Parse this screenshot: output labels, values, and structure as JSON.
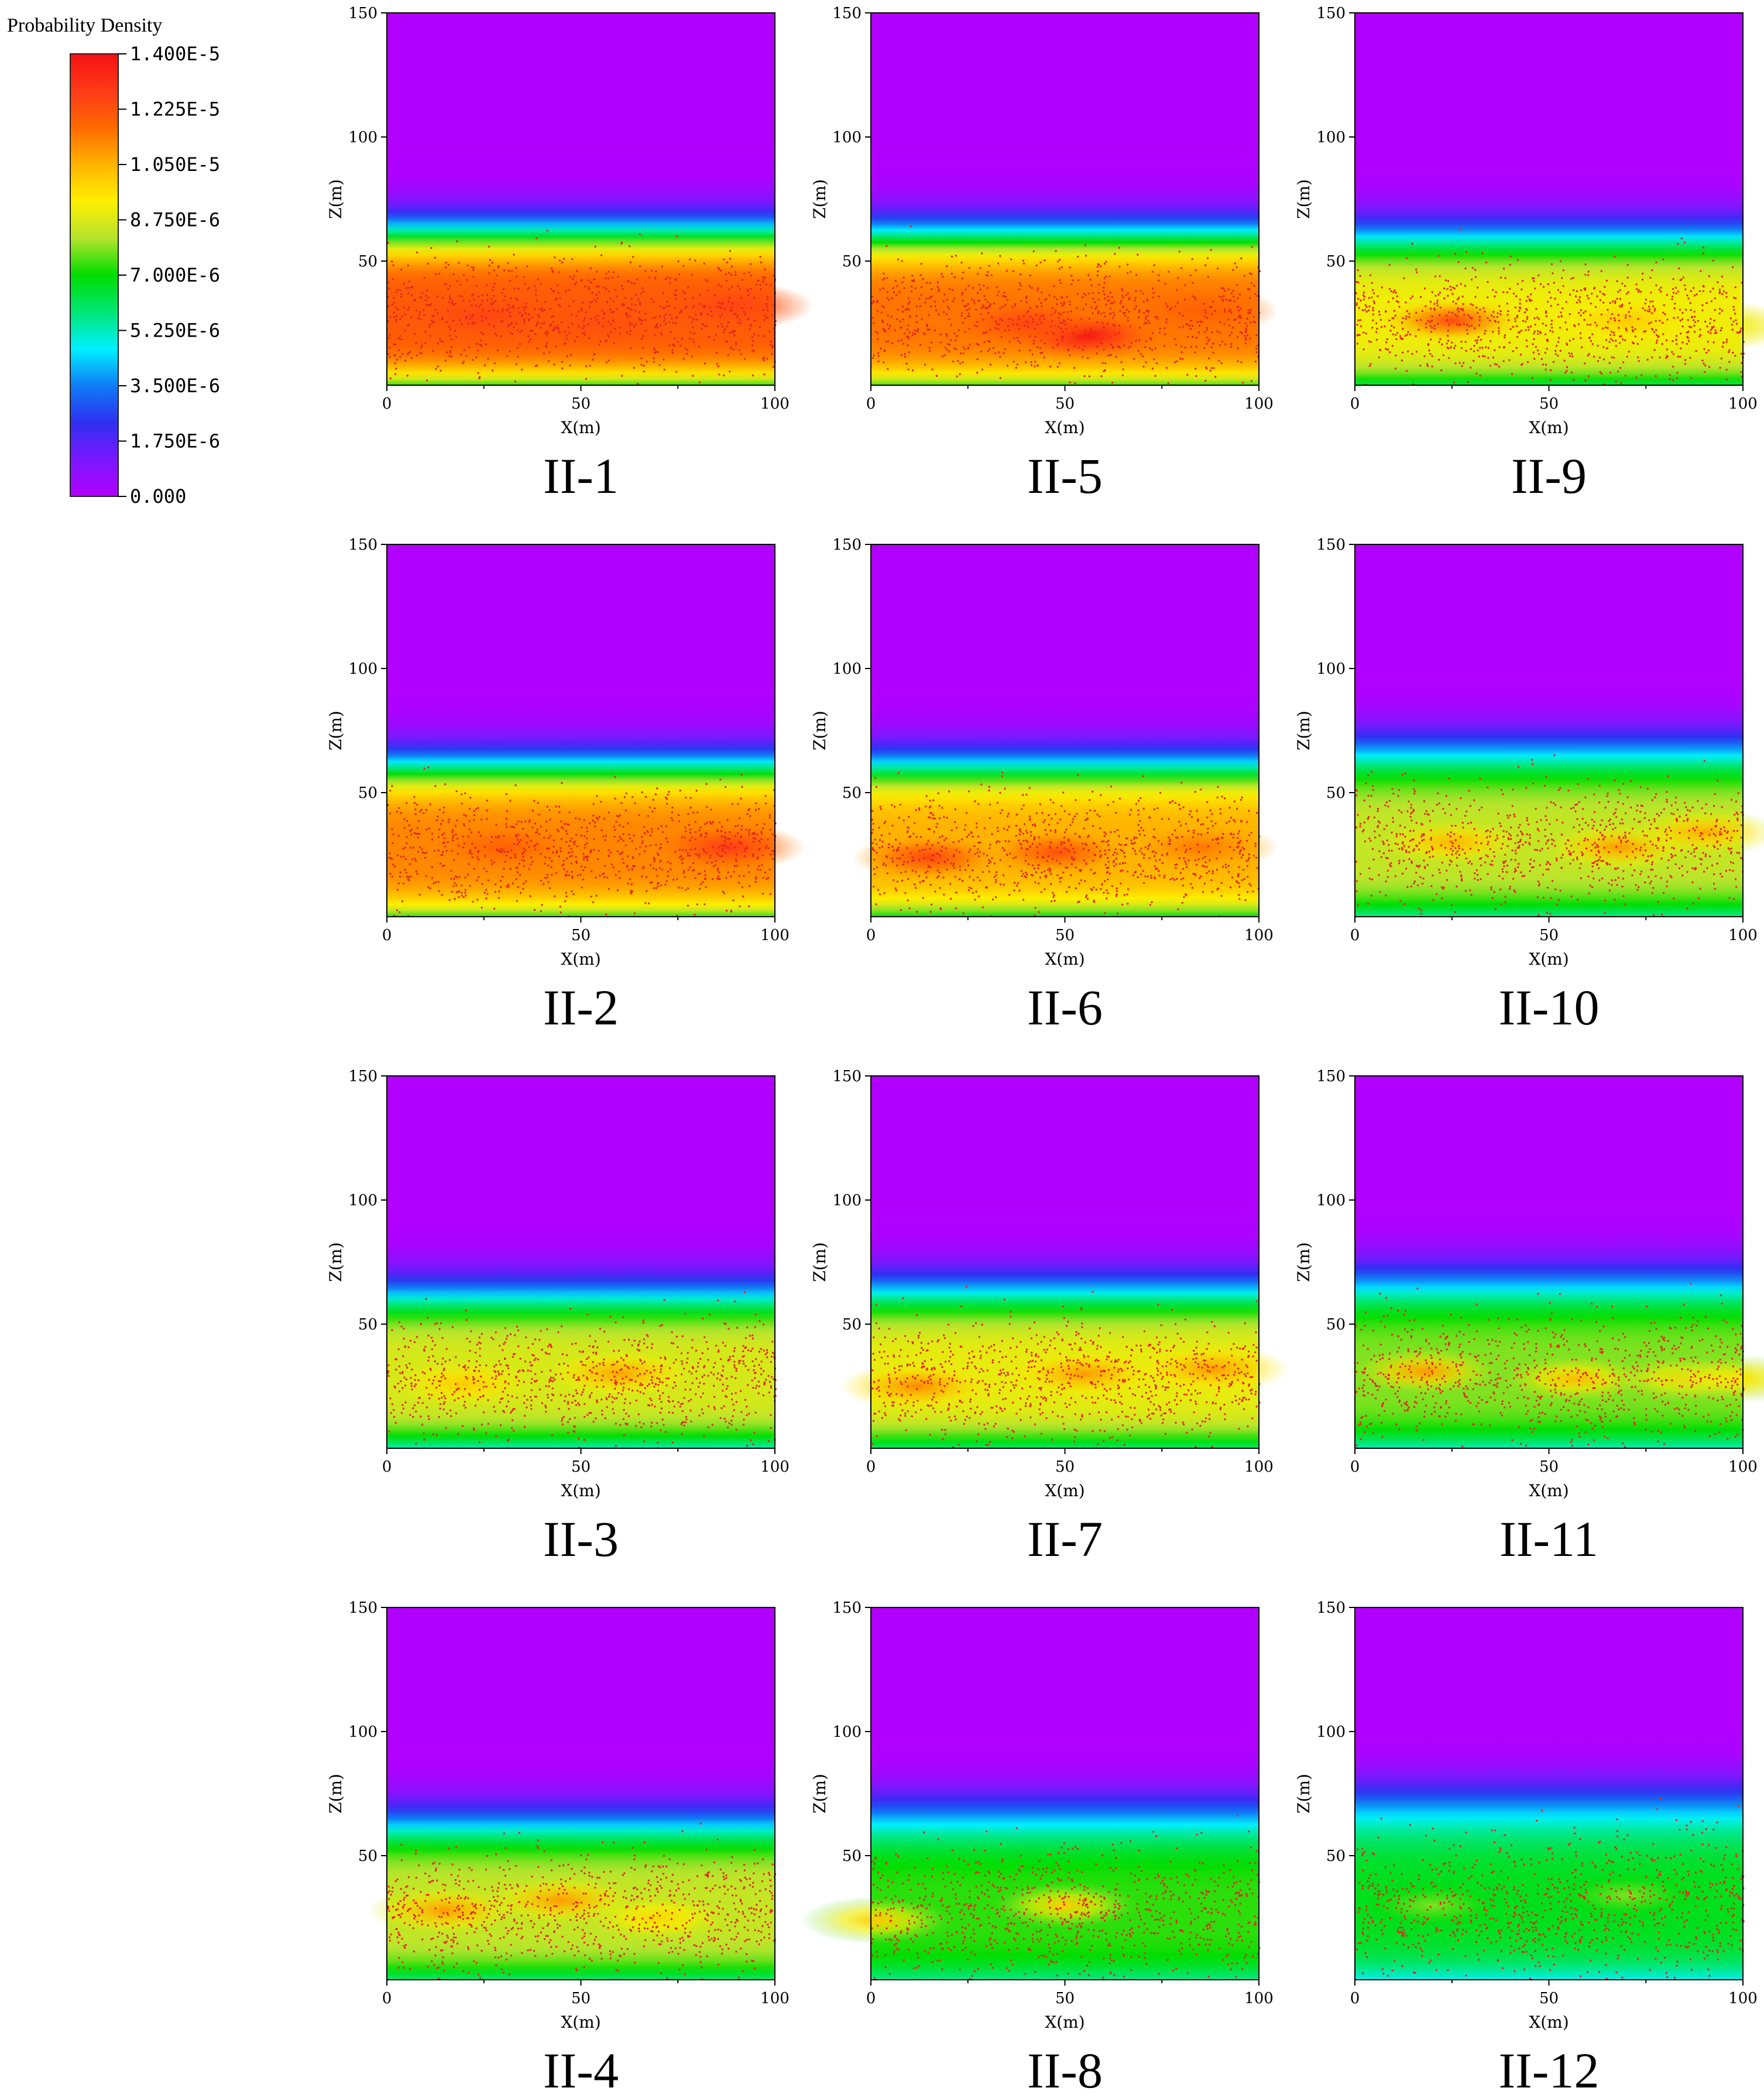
{
  "colorbar": {
    "title": "Probability Density",
    "min": 0,
    "max": 1.4e-05,
    "tick_labels": [
      "1.400E-5",
      "1.225E-5",
      "1.050E-5",
      "8.750E-6",
      "7.000E-6",
      "5.250E-6",
      "3.500E-6",
      "1.750E-6",
      "0.000"
    ],
    "stops": [
      "#b200ff",
      "#7a18ff",
      "#2f2ff0",
      "#0f7cf5",
      "#00f0ff",
      "#00e676",
      "#00dd00",
      "#b4e42e",
      "#ffef00",
      "#ffb400",
      "#ff6a00",
      "#ff3a18",
      "#f41212"
    ]
  },
  "particle_color": "#e8231c",
  "chart_data": [
    {
      "type": "heatmap",
      "title": "II-1",
      "xlabel": "X(m)",
      "ylabel": "Z(m)",
      "xlim": [
        0,
        100
      ],
      "ylim": [
        0,
        150
      ],
      "x_ticks": [
        "0",
        "50",
        "100"
      ],
      "y_ticks": [
        "50",
        "100",
        "150"
      ],
      "band": {
        "center_z": 28,
        "half_width_z": 22,
        "core_level": 0.86
      },
      "hotspots": [
        {
          "x": 25,
          "z": 28,
          "level": 0.9
        },
        {
          "x": 55,
          "z": 25,
          "level": 0.88
        },
        {
          "x": 90,
          "z": 32,
          "level": 0.9
        }
      ]
    },
    {
      "type": "heatmap",
      "title": "II-2",
      "xlabel": "X(m)",
      "ylabel": "Z(m)",
      "xlim": [
        0,
        100
      ],
      "ylim": [
        0,
        150
      ],
      "x_ticks": [
        "0",
        "50",
        "100"
      ],
      "y_ticks": [
        "50",
        "100",
        "150"
      ],
      "band": {
        "center_z": 27,
        "half_width_z": 22,
        "core_level": 0.8
      },
      "hotspots": [
        {
          "x": 30,
          "z": 28,
          "level": 0.85
        },
        {
          "x": 88,
          "z": 28,
          "level": 0.92
        }
      ]
    },
    {
      "type": "heatmap",
      "title": "II-3",
      "xlabel": "X(m)",
      "ylabel": "Z(m)",
      "xlim": [
        0,
        100
      ],
      "ylim": [
        0,
        150
      ],
      "x_ticks": [
        "0",
        "50",
        "100"
      ],
      "y_ticks": [
        "50",
        "100",
        "150"
      ],
      "band": {
        "center_z": 28,
        "half_width_z": 22,
        "core_level": 0.62
      },
      "hotspots": [
        {
          "x": 60,
          "z": 30,
          "level": 0.77
        },
        {
          "x": 20,
          "z": 26,
          "level": 0.72
        }
      ]
    },
    {
      "type": "heatmap",
      "title": "II-4",
      "xlabel": "X(m)",
      "ylabel": "Z(m)",
      "xlim": [
        0,
        100
      ],
      "ylim": [
        0,
        150
      ],
      "x_ticks": [
        "0",
        "50",
        "100"
      ],
      "y_ticks": [
        "50",
        "100",
        "150"
      ],
      "band": {
        "center_z": 27,
        "half_width_z": 23,
        "core_level": 0.6
      },
      "hotspots": [
        {
          "x": 15,
          "z": 28,
          "level": 0.78
        },
        {
          "x": 45,
          "z": 32,
          "level": 0.78
        },
        {
          "x": 70,
          "z": 25,
          "level": 0.7
        }
      ]
    },
    {
      "type": "heatmap",
      "title": "II-5",
      "xlabel": "X(m)",
      "ylabel": "Z(m)",
      "xlim": [
        0,
        100
      ],
      "ylim": [
        0,
        150
      ],
      "x_ticks": [
        "0",
        "50",
        "100"
      ],
      "y_ticks": [
        "50",
        "100",
        "150"
      ],
      "band": {
        "center_z": 27,
        "half_width_z": 22,
        "core_level": 0.82
      },
      "hotspots": [
        {
          "x": 55,
          "z": 20,
          "level": 1.0
        },
        {
          "x": 40,
          "z": 25,
          "level": 0.9
        },
        {
          "x": 85,
          "z": 30,
          "level": 0.85
        }
      ]
    },
    {
      "type": "heatmap",
      "title": "II-6",
      "xlabel": "X(m)",
      "ylabel": "Z(m)",
      "xlim": [
        0,
        100
      ],
      "ylim": [
        0,
        150
      ],
      "x_ticks": [
        "0",
        "50",
        "100"
      ],
      "y_ticks": [
        "50",
        "100",
        "150"
      ],
      "band": {
        "center_z": 27,
        "half_width_z": 22,
        "core_level": 0.75
      },
      "hotspots": [
        {
          "x": 15,
          "z": 24,
          "level": 0.9
        },
        {
          "x": 48,
          "z": 26,
          "level": 0.88
        },
        {
          "x": 85,
          "z": 28,
          "level": 0.82
        }
      ]
    },
    {
      "type": "heatmap",
      "title": "II-7",
      "xlabel": "X(m)",
      "ylabel": "Z(m)",
      "xlim": [
        0,
        100
      ],
      "ylim": [
        0,
        150
      ],
      "x_ticks": [
        "0",
        "50",
        "100"
      ],
      "y_ticks": [
        "50",
        "100",
        "150"
      ],
      "band": {
        "center_z": 28,
        "half_width_z": 23,
        "core_level": 0.64
      },
      "hotspots": [
        {
          "x": 12,
          "z": 25,
          "level": 0.8
        },
        {
          "x": 55,
          "z": 30,
          "level": 0.78
        },
        {
          "x": 88,
          "z": 32,
          "level": 0.78
        }
      ]
    },
    {
      "type": "heatmap",
      "title": "II-8",
      "xlabel": "X(m)",
      "ylabel": "Z(m)",
      "xlim": [
        0,
        100
      ],
      "ylim": [
        0,
        150
      ],
      "x_ticks": [
        "0",
        "50",
        "100"
      ],
      "y_ticks": [
        "50",
        "100",
        "150"
      ],
      "band": {
        "center_z": 27,
        "half_width_z": 25,
        "core_level": 0.52
      },
      "hotspots": [
        {
          "x": 2,
          "z": 24,
          "level": 0.72
        },
        {
          "x": 50,
          "z": 30,
          "level": 0.72
        }
      ]
    },
    {
      "type": "heatmap",
      "title": "II-9",
      "xlabel": "X(m)",
      "ylabel": "Z(m)",
      "xlim": [
        0,
        100
      ],
      "ylim": [
        0,
        150
      ],
      "x_ticks": [
        "0",
        "50",
        "100"
      ],
      "y_ticks": [
        "50",
        "100",
        "150"
      ],
      "band": {
        "center_z": 26,
        "half_width_z": 22,
        "core_level": 0.65
      },
      "hotspots": [
        {
          "x": 25,
          "z": 26,
          "level": 0.9
        },
        {
          "x": 70,
          "z": 26,
          "level": 0.72
        },
        {
          "x": 95,
          "z": 24,
          "level": 0.65
        }
      ]
    },
    {
      "type": "heatmap",
      "title": "II-10",
      "xlabel": "X(m)",
      "ylabel": "Z(m)",
      "xlim": [
        0,
        100
      ],
      "ylim": [
        0,
        150
      ],
      "x_ticks": [
        "0",
        "50",
        "100"
      ],
      "y_ticks": [
        "50",
        "100",
        "150"
      ],
      "band": {
        "center_z": 29,
        "half_width_z": 24,
        "core_level": 0.6
      },
      "hotspots": [
        {
          "x": 25,
          "z": 30,
          "level": 0.75
        },
        {
          "x": 68,
          "z": 28,
          "level": 0.78
        },
        {
          "x": 90,
          "z": 34,
          "level": 0.76
        }
      ]
    },
    {
      "type": "heatmap",
      "title": "II-11",
      "xlabel": "X(m)",
      "ylabel": "Z(m)",
      "xlim": [
        0,
        100
      ],
      "ylim": [
        0,
        150
      ],
      "x_ticks": [
        "0",
        "50",
        "100"
      ],
      "y_ticks": [
        "50",
        "100",
        "150"
      ],
      "band": {
        "center_z": 29,
        "half_width_z": 24,
        "core_level": 0.56
      },
      "hotspots": [
        {
          "x": 18,
          "z": 31,
          "level": 0.78
        },
        {
          "x": 57,
          "z": 28,
          "level": 0.74
        },
        {
          "x": 85,
          "z": 28,
          "level": 0.7
        },
        {
          "x": 99,
          "z": 28,
          "level": 0.68
        }
      ]
    },
    {
      "type": "heatmap",
      "title": "II-12",
      "xlabel": "X(m)",
      "ylabel": "Z(m)",
      "xlim": [
        0,
        100
      ],
      "ylim": [
        0,
        150
      ],
      "x_ticks": [
        "0",
        "50",
        "100"
      ],
      "y_ticks": [
        "50",
        "100",
        "150"
      ],
      "band": {
        "center_z": 30,
        "half_width_z": 26,
        "core_level": 0.48
      },
      "hotspots": [
        {
          "x": 20,
          "z": 30,
          "level": 0.56
        },
        {
          "x": 70,
          "z": 34,
          "level": 0.56
        }
      ]
    }
  ]
}
